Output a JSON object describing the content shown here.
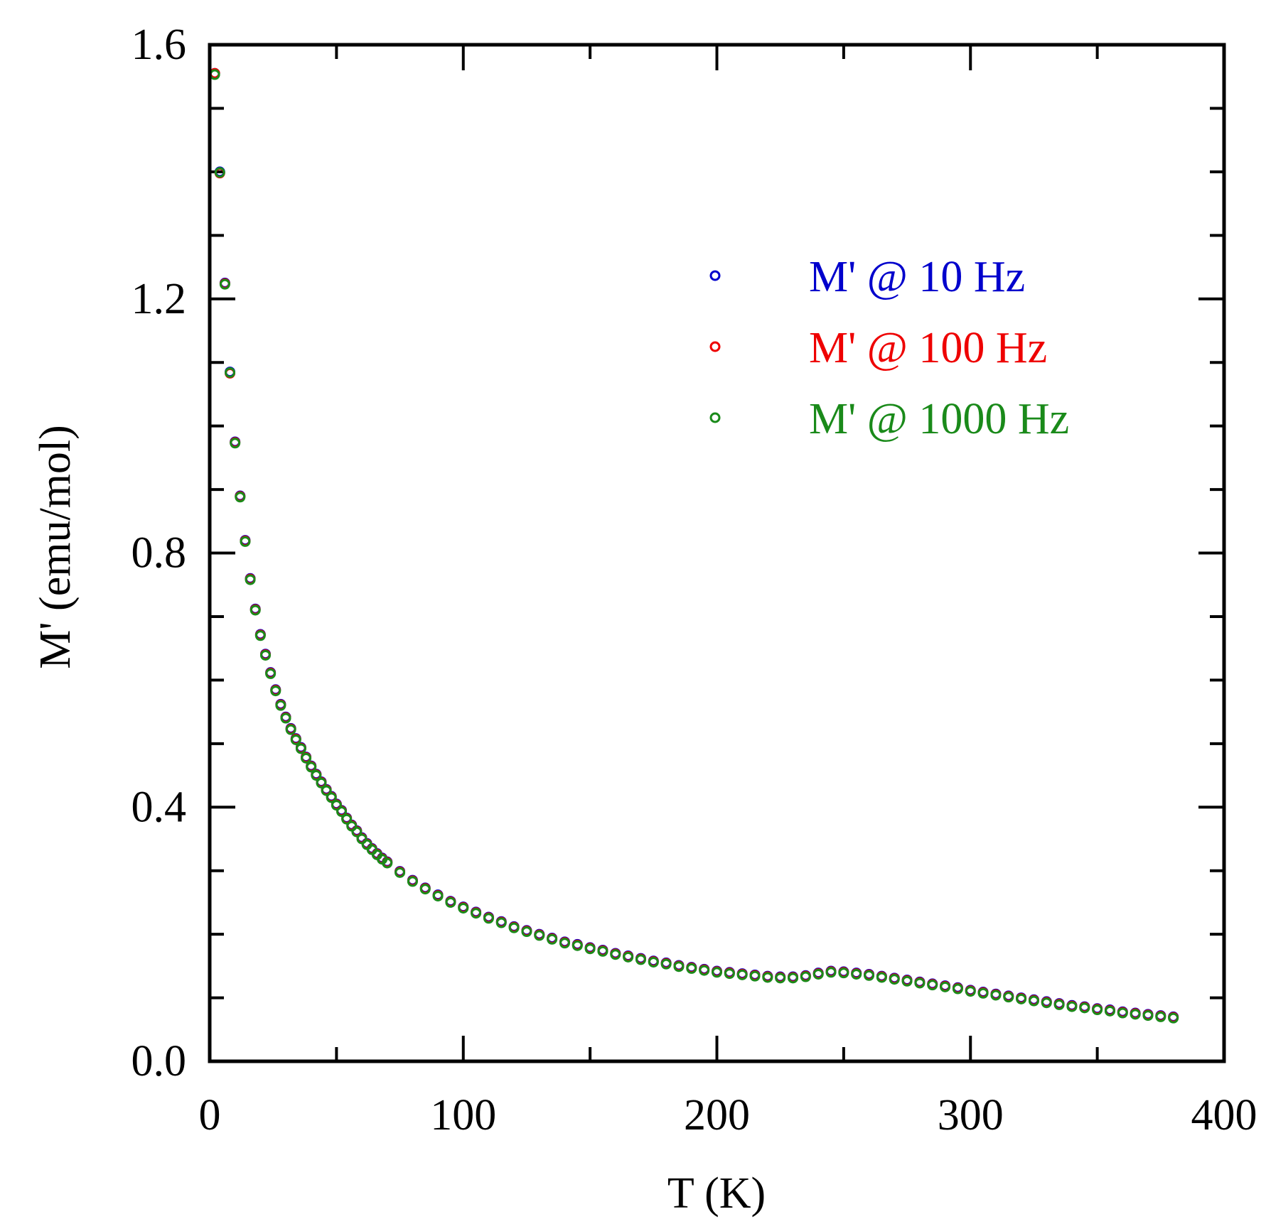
{
  "chart_data": {
    "type": "scatter",
    "title": "",
    "xlabel": "T (K)",
    "ylabel": "M' (emu/mol)",
    "xlim": [
      0,
      400
    ],
    "ylim": [
      0.0,
      1.6
    ],
    "x_ticks": [
      0,
      100,
      200,
      300,
      400
    ],
    "x_tick_labels": [
      "0",
      "100",
      "200",
      "300",
      "400"
    ],
    "y_ticks": [
      0.0,
      0.4,
      0.8,
      1.2,
      1.6
    ],
    "y_tick_labels": [
      "0.0",
      "0.4",
      "0.8",
      "1.2",
      "1.6"
    ],
    "grid": false,
    "legend_position": "upper-right",
    "marker": "open-circle",
    "series": [
      {
        "name": "M' @ 10 Hz",
        "color": "#0000cc",
        "x": [
          2,
          4,
          6,
          8,
          10,
          12,
          14,
          16,
          18,
          20,
          22,
          24,
          26,
          28,
          30,
          32,
          34,
          36,
          38,
          40,
          42,
          44,
          46,
          48,
          50,
          52,
          54,
          56,
          58,
          60,
          62,
          64,
          66,
          68,
          70,
          75,
          80,
          85,
          90,
          95,
          100,
          105,
          110,
          115,
          120,
          125,
          130,
          135,
          140,
          145,
          150,
          155,
          160,
          165,
          170,
          175,
          180,
          185,
          190,
          195,
          200,
          205,
          210,
          215,
          220,
          225,
          230,
          235,
          240,
          245,
          250,
          255,
          260,
          265,
          270,
          275,
          280,
          285,
          290,
          295,
          300,
          305,
          310,
          315,
          320,
          325,
          330,
          335,
          340,
          345,
          350,
          355,
          360,
          365,
          370,
          375,
          380
        ],
        "y": [
          1.555,
          1.4,
          1.225,
          1.085,
          0.975,
          0.89,
          0.82,
          0.76,
          0.712,
          0.672,
          0.641,
          0.612,
          0.585,
          0.562,
          0.542,
          0.524,
          0.508,
          0.494,
          0.479,
          0.465,
          0.452,
          0.44,
          0.428,
          0.417,
          0.405,
          0.395,
          0.383,
          0.372,
          0.363,
          0.352,
          0.343,
          0.335,
          0.327,
          0.32,
          0.314,
          0.299,
          0.285,
          0.273,
          0.262,
          0.252,
          0.243,
          0.235,
          0.227,
          0.22,
          0.212,
          0.206,
          0.2,
          0.194,
          0.188,
          0.184,
          0.179,
          0.175,
          0.17,
          0.166,
          0.162,
          0.158,
          0.155,
          0.151,
          0.148,
          0.145,
          0.142,
          0.14,
          0.138,
          0.136,
          0.134,
          0.133,
          0.133,
          0.135,
          0.139,
          0.142,
          0.141,
          0.139,
          0.137,
          0.134,
          0.131,
          0.128,
          0.125,
          0.122,
          0.119,
          0.116,
          0.112,
          0.109,
          0.106,
          0.103,
          0.1,
          0.097,
          0.094,
          0.091,
          0.088,
          0.086,
          0.083,
          0.081,
          0.078,
          0.076,
          0.074,
          0.072,
          0.07
        ]
      },
      {
        "name": "M' @ 100 Hz",
        "color": "#ee0000",
        "x": [
          2,
          4,
          6,
          8,
          10,
          12,
          14,
          16,
          18,
          20,
          22,
          24,
          26,
          28,
          30,
          32,
          34,
          36,
          38,
          40,
          42,
          44,
          46,
          48,
          50,
          52,
          54,
          56,
          58,
          60,
          62,
          64,
          66,
          68,
          70,
          75,
          80,
          85,
          90,
          95,
          100,
          105,
          110,
          115,
          120,
          125,
          130,
          135,
          140,
          145,
          150,
          155,
          160,
          165,
          170,
          175,
          180,
          185,
          190,
          195,
          200,
          205,
          210,
          215,
          220,
          225,
          230,
          235,
          240,
          245,
          250,
          255,
          260,
          265,
          270,
          275,
          280,
          285,
          290,
          295,
          300,
          305,
          310,
          315,
          320,
          325,
          330,
          335,
          340,
          345,
          350,
          355,
          360,
          365,
          370,
          375,
          380
        ],
        "y": [
          1.555,
          1.398,
          1.224,
          1.083,
          0.974,
          0.889,
          0.819,
          0.759,
          0.711,
          0.671,
          0.64,
          0.611,
          0.584,
          0.561,
          0.541,
          0.523,
          0.507,
          0.493,
          0.478,
          0.464,
          0.451,
          0.439,
          0.427,
          0.416,
          0.404,
          0.394,
          0.382,
          0.371,
          0.362,
          0.351,
          0.342,
          0.334,
          0.326,
          0.319,
          0.313,
          0.298,
          0.284,
          0.272,
          0.261,
          0.251,
          0.242,
          0.234,
          0.226,
          0.219,
          0.211,
          0.205,
          0.199,
          0.193,
          0.187,
          0.183,
          0.178,
          0.174,
          0.169,
          0.165,
          0.161,
          0.157,
          0.154,
          0.15,
          0.147,
          0.144,
          0.141,
          0.139,
          0.137,
          0.135,
          0.133,
          0.132,
          0.132,
          0.134,
          0.138,
          0.141,
          0.14,
          0.138,
          0.136,
          0.133,
          0.13,
          0.127,
          0.124,
          0.121,
          0.118,
          0.115,
          0.111,
          0.108,
          0.105,
          0.102,
          0.099,
          0.096,
          0.093,
          0.09,
          0.087,
          0.085,
          0.082,
          0.08,
          0.077,
          0.075,
          0.073,
          0.071,
          0.069
        ]
      },
      {
        "name": "M' @ 1000 Hz",
        "color": "#1a8a1a",
        "x": [
          2,
          4,
          6,
          8,
          10,
          12,
          14,
          16,
          18,
          20,
          22,
          24,
          26,
          28,
          30,
          32,
          34,
          36,
          38,
          40,
          42,
          44,
          46,
          48,
          50,
          52,
          54,
          56,
          58,
          60,
          62,
          64,
          66,
          68,
          70,
          75,
          80,
          85,
          90,
          95,
          100,
          105,
          110,
          115,
          120,
          125,
          130,
          135,
          140,
          145,
          150,
          155,
          160,
          165,
          170,
          175,
          180,
          185,
          190,
          195,
          200,
          205,
          210,
          215,
          220,
          225,
          230,
          235,
          240,
          245,
          250,
          255,
          260,
          265,
          270,
          275,
          280,
          285,
          290,
          295,
          300,
          305,
          310,
          315,
          320,
          325,
          330,
          335,
          340,
          345,
          350,
          355,
          360,
          365,
          370,
          375,
          380
        ],
        "y": [
          1.553,
          1.399,
          1.223,
          1.084,
          0.973,
          0.888,
          0.818,
          0.758,
          0.71,
          0.67,
          0.639,
          0.61,
          0.583,
          0.56,
          0.54,
          0.522,
          0.506,
          0.492,
          0.477,
          0.463,
          0.45,
          0.438,
          0.426,
          0.415,
          0.403,
          0.393,
          0.381,
          0.37,
          0.361,
          0.35,
          0.341,
          0.333,
          0.325,
          0.318,
          0.312,
          0.297,
          0.283,
          0.271,
          0.26,
          0.25,
          0.241,
          0.233,
          0.225,
          0.218,
          0.21,
          0.204,
          0.198,
          0.192,
          0.186,
          0.182,
          0.177,
          0.173,
          0.168,
          0.164,
          0.16,
          0.156,
          0.153,
          0.149,
          0.146,
          0.143,
          0.14,
          0.138,
          0.136,
          0.134,
          0.132,
          0.131,
          0.131,
          0.133,
          0.137,
          0.14,
          0.139,
          0.137,
          0.135,
          0.132,
          0.129,
          0.126,
          0.123,
          0.12,
          0.117,
          0.114,
          0.11,
          0.107,
          0.104,
          0.101,
          0.098,
          0.095,
          0.092,
          0.089,
          0.086,
          0.084,
          0.081,
          0.079,
          0.076,
          0.074,
          0.072,
          0.07,
          0.068
        ]
      }
    ]
  }
}
